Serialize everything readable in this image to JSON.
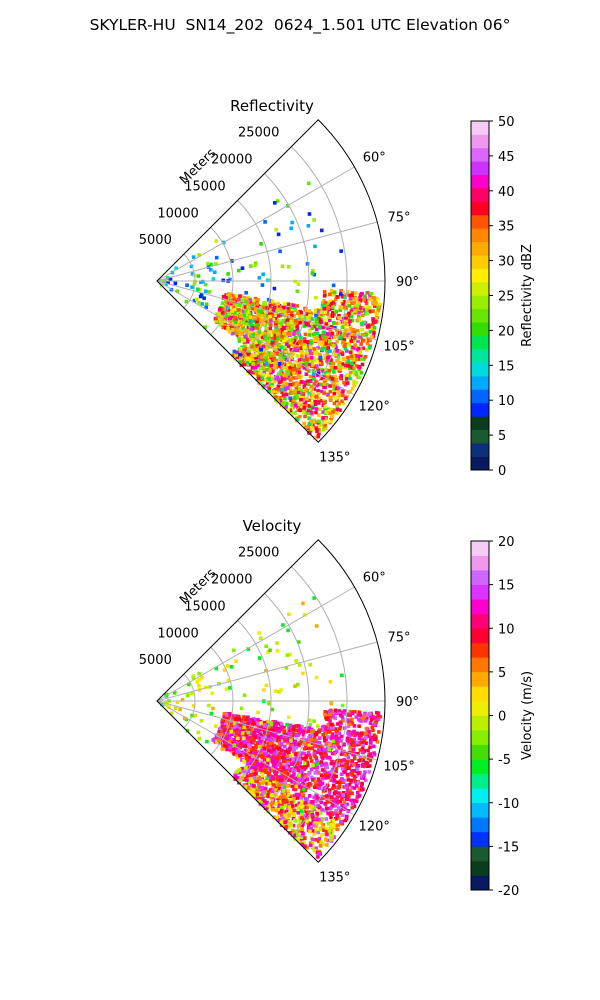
{
  "figure_title": "SKYLER-HU  SN14_202  0624_1.501 UTC Elevation 06°",
  "chart_data": [
    {
      "type": "polar-sector",
      "title": "Reflectivity",
      "range_axis_label": "Meters",
      "range_ticks": [
        5000,
        10000,
        15000,
        20000,
        25000
      ],
      "range_max": 30000,
      "azimuth_ticks_deg": [
        "60°",
        "75°",
        "90°",
        "105°",
        "120°",
        "135°"
      ],
      "azimuth_range_deg": [
        45,
        135
      ],
      "colorbar": {
        "label": "Reflectivity dBZ",
        "range": [
          0,
          50
        ],
        "ticks": [
          0,
          5,
          10,
          15,
          20,
          25,
          30,
          35,
          40,
          45,
          50
        ],
        "colors": [
          "#0a1a5e",
          "#0d2f7a",
          "#1a5a2e",
          "#0b3d1d",
          "#0026ff",
          "#0066ff",
          "#00aaff",
          "#00dcdc",
          "#00e6a0",
          "#00e650",
          "#33dd00",
          "#66e600",
          "#99ee00",
          "#ccee00",
          "#ffee00",
          "#ffcc00",
          "#ffaa00",
          "#ff8800",
          "#ff5500",
          "#ff0022",
          "#ff0066",
          "#ff00cc",
          "#cc33ff",
          "#dd66ff",
          "#ee99ee",
          "#f6ccf6"
        ]
      }
    },
    {
      "type": "polar-sector",
      "title": "Velocity",
      "range_axis_label": "Meters",
      "range_ticks": [
        5000,
        10000,
        15000,
        20000,
        25000
      ],
      "range_max": 30000,
      "azimuth_ticks_deg": [
        "60°",
        "75°",
        "90°",
        "105°",
        "120°",
        "135°"
      ],
      "azimuth_range_deg": [
        45,
        135
      ],
      "colorbar": {
        "label": "Velocity (m/s)",
        "range": [
          -20,
          20
        ],
        "ticks": [
          -20,
          -15,
          -10,
          -5,
          0,
          5,
          10,
          15,
          20
        ],
        "colors": [
          "#0a1a5e",
          "#0b3d1d",
          "#1a5a2e",
          "#0033ff",
          "#0077ff",
          "#00bbff",
          "#00eeee",
          "#00ee88",
          "#00ee22",
          "#44dd00",
          "#88ee00",
          "#bbee00",
          "#eeee00",
          "#ffdd00",
          "#ffaa00",
          "#ff7700",
          "#ff3300",
          "#ff0033",
          "#ff0077",
          "#ff00cc",
          "#dd33ff",
          "#cc66ff",
          "#ee99ee",
          "#f6ccf6"
        ]
      }
    }
  ]
}
